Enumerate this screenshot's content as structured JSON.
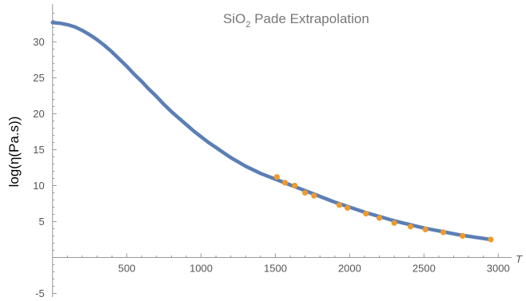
{
  "chart_data": {
    "type": "line",
    "title": "SiO",
    "title_subscript": "2",
    "title_rest": " Pade Extrapolation",
    "xlabel": "T",
    "ylabel": "log(η(Pa.s))",
    "xlim": [
      -20,
      3090
    ],
    "ylim": [
      -5.5,
      35.5
    ],
    "x_ticks": [
      500,
      1000,
      1500,
      2000,
      2500,
      3000
    ],
    "y_ticks": [
      -5,
      5,
      10,
      15,
      20,
      25,
      30
    ],
    "grid": false,
    "series": [
      {
        "type": "line",
        "color": "#5b7fb5",
        "x": [
          0,
          50,
          100,
          150,
          200,
          250,
          300,
          350,
          400,
          450,
          500,
          550,
          600,
          650,
          700,
          750,
          800,
          850,
          900,
          950,
          1000,
          1050,
          1100,
          1150,
          1200,
          1250,
          1300,
          1350,
          1400,
          1450,
          1500,
          1550,
          1600,
          1650,
          1700,
          1750,
          1800,
          1850,
          1900,
          1950,
          2000,
          2050,
          2100,
          2150,
          2200,
          2250,
          2300,
          2350,
          2400,
          2450,
          2500,
          2550,
          2600,
          2650,
          2700,
          2750,
          2800,
          2850,
          2900,
          2950
        ],
        "y": [
          32.7,
          32.6,
          32.4,
          32.1,
          31.6,
          31.0,
          30.3,
          29.5,
          28.6,
          27.6,
          26.6,
          25.5,
          24.5,
          23.4,
          22.4,
          21.3,
          20.3,
          19.4,
          18.5,
          17.6,
          16.8,
          16.0,
          15.3,
          14.6,
          13.9,
          13.3,
          12.7,
          12.2,
          11.7,
          11.3,
          10.9,
          10.5,
          10.1,
          9.7,
          9.3,
          8.9,
          8.5,
          8.1,
          7.7,
          7.35,
          7.0,
          6.65,
          6.3,
          6.0,
          5.7,
          5.4,
          5.1,
          4.85,
          4.6,
          4.35,
          4.1,
          3.9,
          3.7,
          3.5,
          3.3,
          3.1,
          2.95,
          2.8,
          2.65,
          2.5
        ]
      },
      {
        "type": "scatter",
        "color": "#ef9a2b",
        "x": [
          1510,
          1565,
          1630,
          1700,
          1760,
          1930,
          1985,
          2110,
          2200,
          2300,
          2410,
          2510,
          2630,
          2760,
          2950
        ],
        "y": [
          11.2,
          10.4,
          10.0,
          9.0,
          8.6,
          7.3,
          6.9,
          6.1,
          5.5,
          4.8,
          4.3,
          3.9,
          3.5,
          3.0,
          2.5
        ]
      }
    ]
  }
}
